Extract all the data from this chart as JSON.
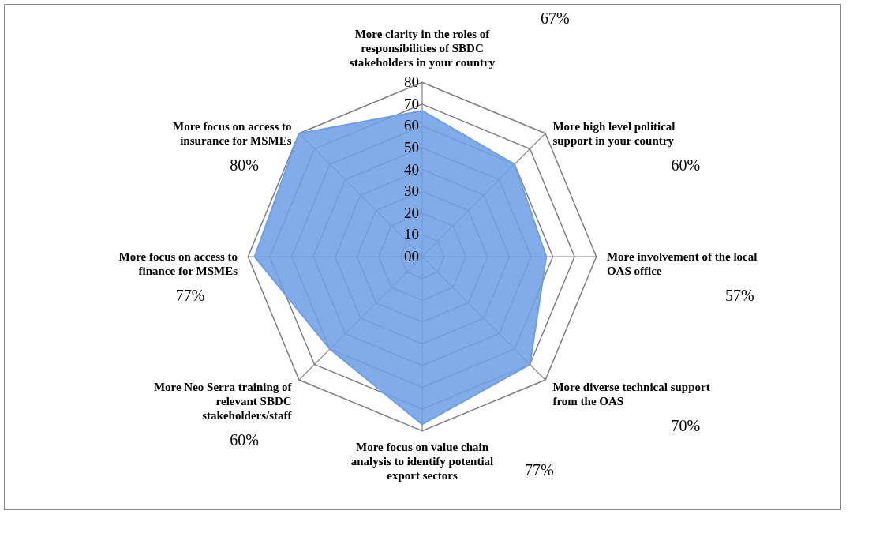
{
  "chart_data": {
    "type": "radar",
    "categories": [
      "More clarity in the roles of responsibilities of SBDC stakeholders in your country",
      "More high level political support in your country",
      "More involvement of the local OAS office",
      "More diverse technical support from the OAS",
      "More focus on value chain analysis to identify potential export sectors",
      "More Neo Serra training of relevant SBDC stakeholders/staff",
      "More focus on access to finance for MSMEs",
      "More focus on access to insurance for MSMEs"
    ],
    "series": [
      {
        "color": "#6f9fe6",
        "values": [
          67,
          60,
          57,
          70,
          77,
          60,
          77,
          80
        ]
      }
    ],
    "value_labels": [
      "67%",
      "60%",
      "57%",
      "70%",
      "77%",
      "60%",
      "77%",
      "80%"
    ],
    "ylim": [
      0,
      80
    ],
    "yticks": [
      {
        "value": 0,
        "label": "00"
      },
      10,
      20,
      30,
      40,
      50,
      60,
      70,
      80
    ],
    "legend": false
  }
}
